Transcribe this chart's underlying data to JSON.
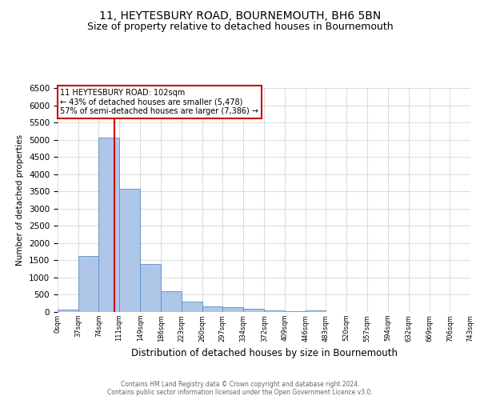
{
  "title": "11, HEYTESBURY ROAD, BOURNEMOUTH, BH6 5BN",
  "subtitle": "Size of property relative to detached houses in Bournemouth",
  "xlabel": "Distribution of detached houses by size in Bournemouth",
  "ylabel": "Number of detached properties",
  "footer_line1": "Contains HM Land Registry data © Crown copyright and database right 2024.",
  "footer_line2": "Contains public sector information licensed under the Open Government Licence v3.0.",
  "bar_edges": [
    0,
    37,
    74,
    111,
    149,
    186,
    223,
    260,
    297,
    334,
    372,
    409,
    446,
    483,
    520,
    557,
    594,
    632,
    669,
    706,
    743
  ],
  "bar_heights": [
    75,
    1620,
    5060,
    3580,
    1400,
    600,
    300,
    155,
    130,
    100,
    50,
    30,
    55,
    0,
    0,
    0,
    0,
    0,
    0,
    0
  ],
  "bar_color": "#aec6e8",
  "bar_edge_color": "#5a8fc4",
  "property_line_x": 102,
  "property_line_color": "#cc0000",
  "annotation_text": "11 HEYTESBURY ROAD: 102sqm\n← 43% of detached houses are smaller (5,478)\n57% of semi-detached houses are larger (7,386) →",
  "annotation_box_color": "#ffffff",
  "annotation_box_edge": "#cc0000",
  "ylim": [
    0,
    6500
  ],
  "yticks": [
    0,
    500,
    1000,
    1500,
    2000,
    2500,
    3000,
    3500,
    4000,
    4500,
    5000,
    5500,
    6000,
    6500
  ],
  "grid_color": "#cccccc",
  "bg_color": "#ffffff",
  "title_fontsize": 10,
  "subtitle_fontsize": 9
}
